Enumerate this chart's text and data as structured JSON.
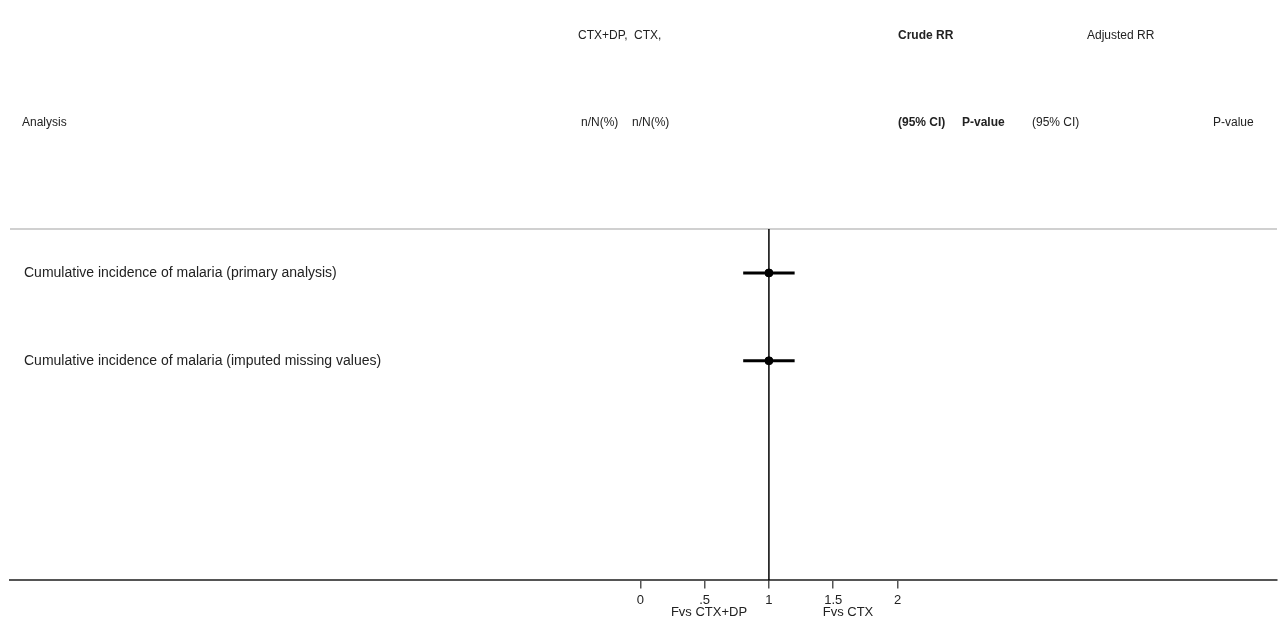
{
  "chart_data": {
    "type": "scatter",
    "orientation": "horizontal",
    "categories": [
      "Cumulative incidence of malaria (primary analysis)",
      "Cumulative incidence of malaria (imputed missing values)",
      null,
      null
    ],
    "values": [
      1,
      1,
      null,
      null
    ],
    "errors": [
      [
        0.8,
        1.2
      ],
      [
        0.8,
        1.2
      ],
      null,
      null
    ],
    "color": "#000000",
    "marker": "circle",
    "xlim": [
      -4.9,
      4.95
    ],
    "xticks": [
      0,
      {
        "value": 0.5,
        "label": ".5"
      },
      1,
      1.5,
      2
    ],
    "ref_lines": [
      {
        "axis": "x",
        "value": 1,
        "color": "#000000"
      }
    ],
    "grid": false,
    "legend": false,
    "annotations": [
      "CTX+DP,",
      "CTX,",
      "Crude RR",
      "Adjusted RR",
      "Analysis",
      "n/N(%)",
      "n/N(%)",
      "(95% CI)",
      "P-value",
      "(95% CI)",
      "P-value",
      "Fvs CTX+DP",
      "Fvs CTX"
    ]
  }
}
